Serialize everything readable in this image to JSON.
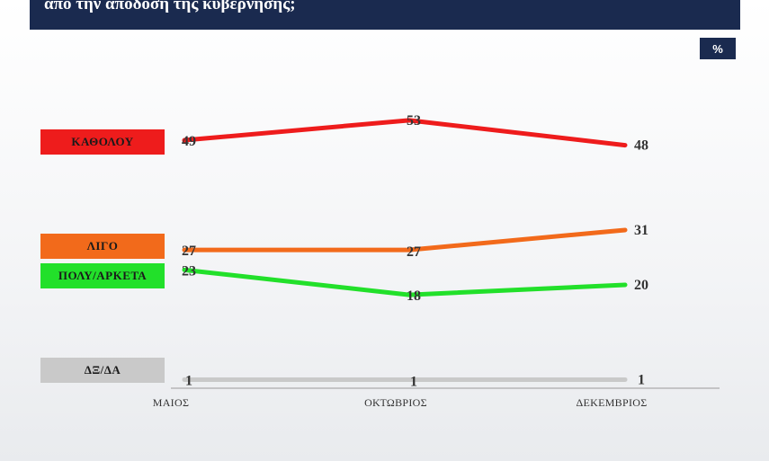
{
  "header": {
    "title": "από την απόδοση της κυβέρνησης;"
  },
  "unit_badge": "%",
  "chart_data": {
    "type": "line",
    "categories": [
      "ΜΑΙΟΣ",
      "ΟΚΤΩΒΡΙΟΣ",
      "ΔΕΚΕΜΒΡΙΟΣ"
    ],
    "series": [
      {
        "name": "ΚΑΘΟΛΟΥ",
        "values": [
          49,
          53,
          48
        ],
        "color": "#ee1c1c",
        "text_color": "#111111"
      },
      {
        "name": "ΛΙΓΟ",
        "values": [
          27,
          27,
          31
        ],
        "color": "#f26a1b",
        "text_color": "#111111"
      },
      {
        "name": "ΠΟΛΥ/ΑΡΚΕΤΑ",
        "values": [
          23,
          18,
          20
        ],
        "color": "#22e02a",
        "text_color": "#111111"
      },
      {
        "name": "ΔΞ/ΔΑ",
        "values": [
          1,
          1,
          1
        ],
        "color": "#c9c9c9",
        "text_color": "#111111"
      }
    ],
    "ylim": [
      0,
      60
    ],
    "grid": false,
    "legend": "left"
  }
}
